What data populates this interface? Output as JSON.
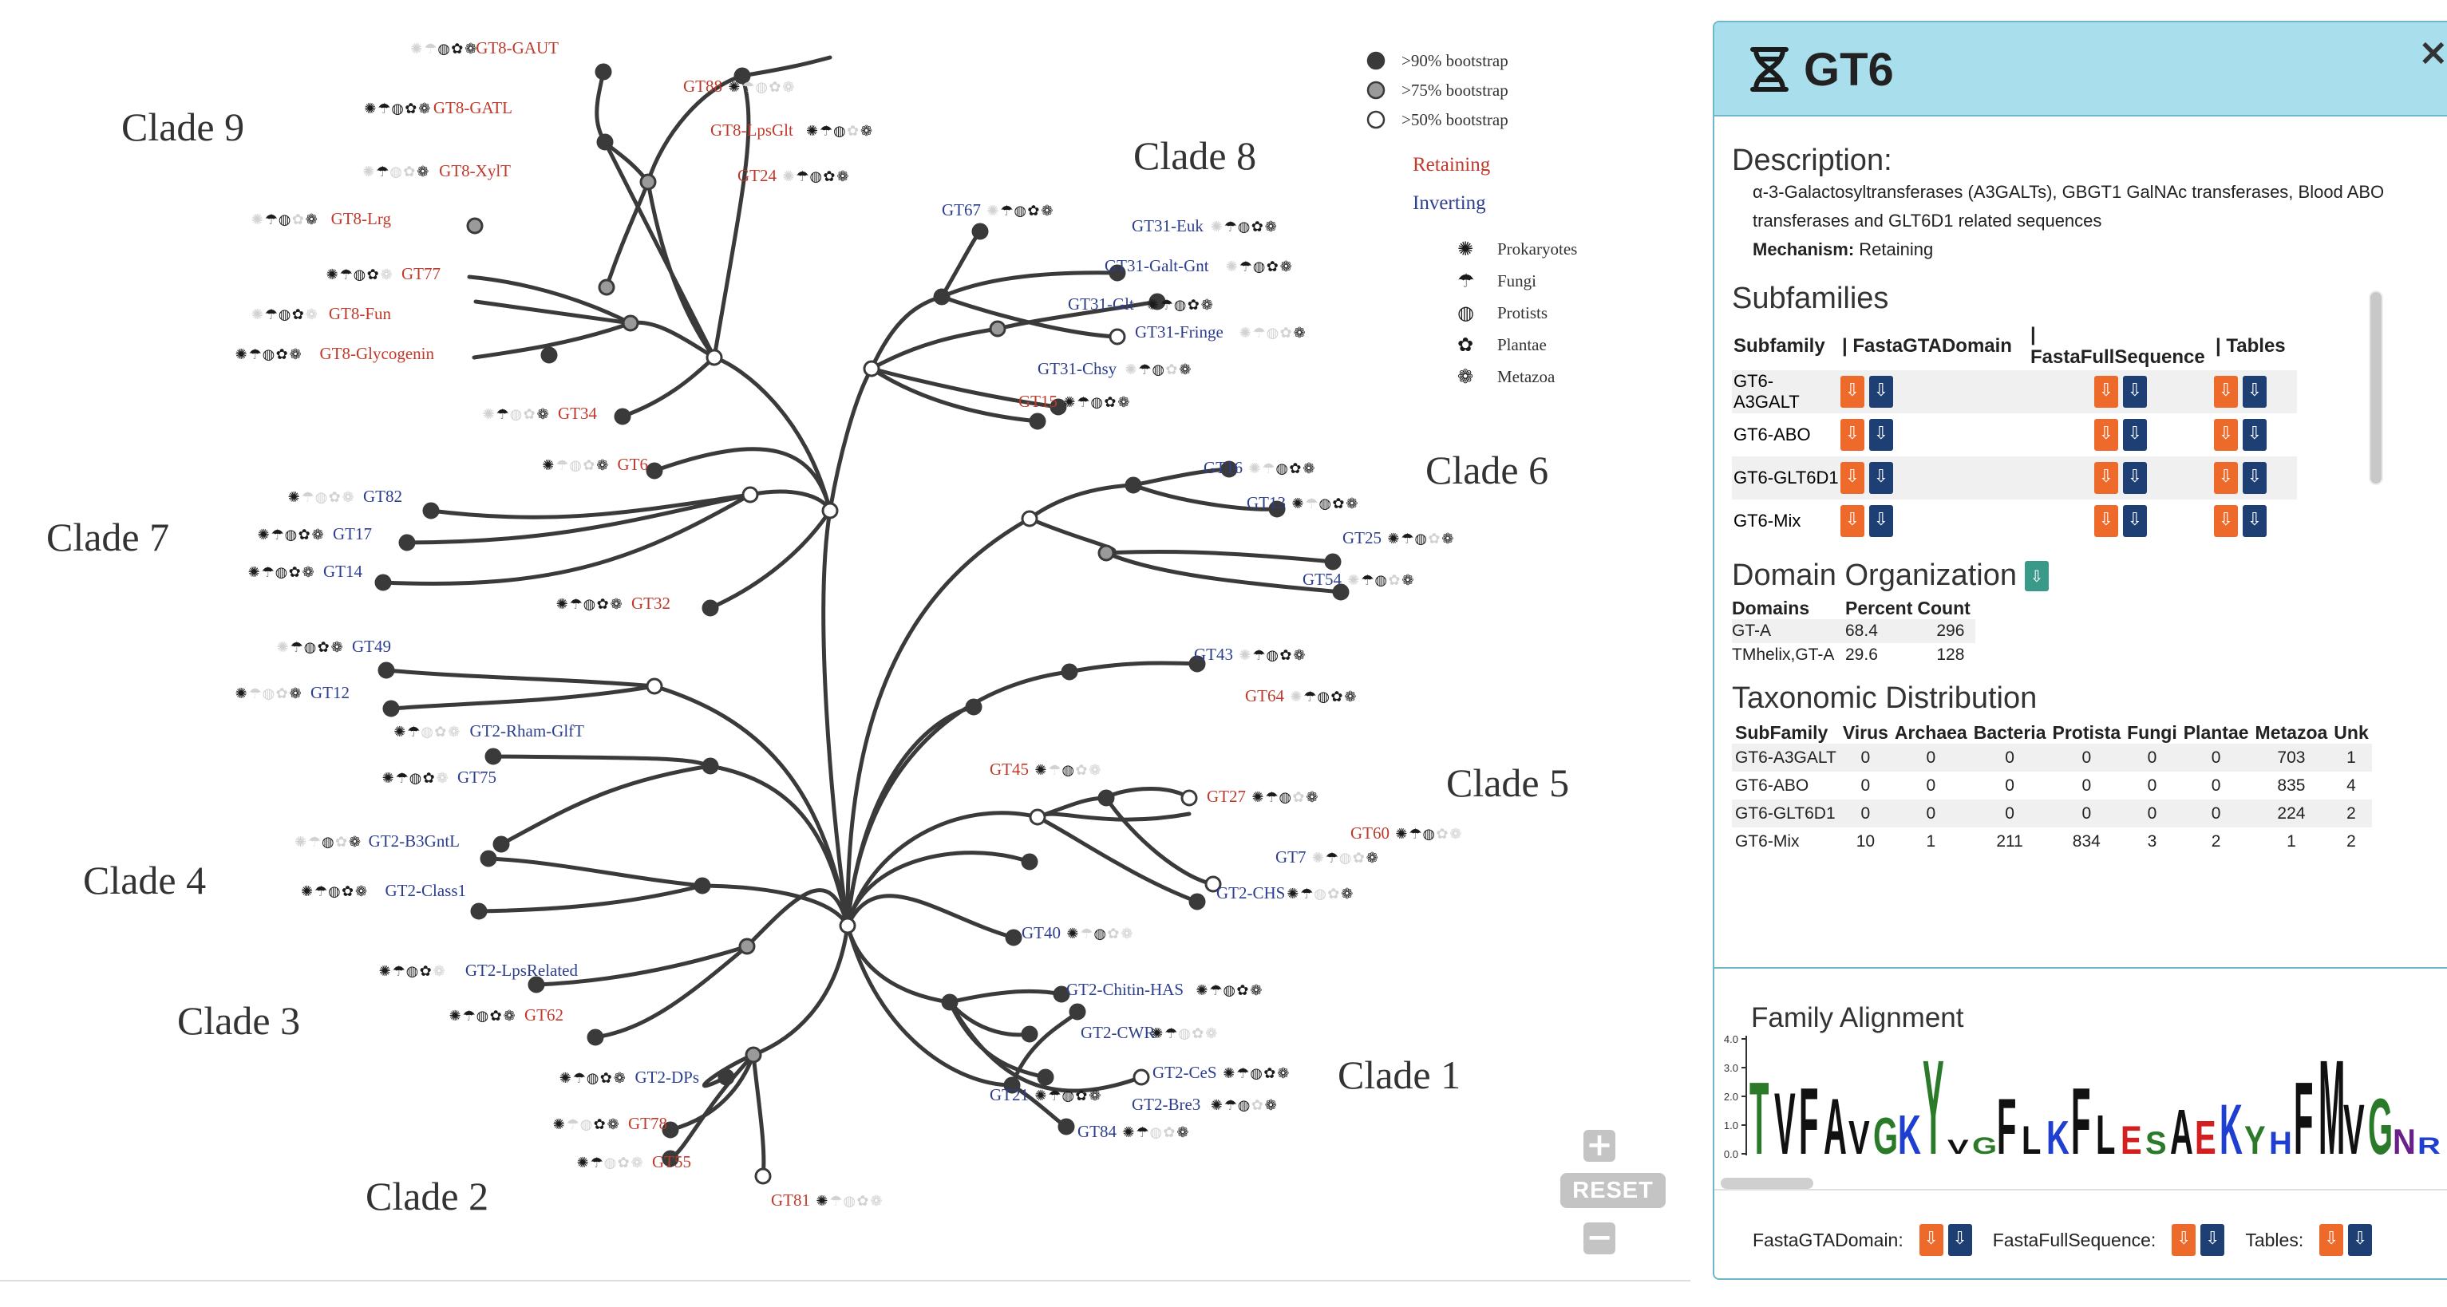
{
  "legend": {
    "bootstrap": [
      ">90% bootstrap",
      ">75% bootstrap",
      ">50% bootstrap"
    ],
    "mechanism": [
      {
        "label": "Retaining",
        "color": "#c0392b"
      },
      {
        "label": "Inverting",
        "color": "#2c3e8f"
      }
    ],
    "taxa": [
      "Prokaryotes",
      "Fungi",
      "Protists",
      "Plantae",
      "Metazoa"
    ]
  },
  "colors": {
    "retaining": "#c0392b",
    "inverting": "#2c3e8f",
    "branch": "#3a3a3a",
    "panel_header": "#a9dfec",
    "download_orange": "#ed6a2b",
    "download_blue": "#1d3f74"
  },
  "clades": [
    "Clade 9",
    "Clade 8",
    "Clade 7",
    "Clade 6",
    "Clade 5",
    "Clade 4",
    "Clade 3",
    "Clade 2",
    "Clade 1"
  ],
  "leaves": [
    {
      "label": "GT8-GAUT",
      "mech": "retaining",
      "taxa": [
        0,
        0,
        1,
        1,
        1
      ]
    },
    {
      "label": "GT88",
      "mech": "retaining",
      "taxa": [
        1,
        0,
        0,
        0,
        0
      ]
    },
    {
      "label": "GT8-GATL",
      "mech": "retaining",
      "taxa": [
        1,
        1,
        1,
        1,
        1
      ]
    },
    {
      "label": "GT8-LpsGlt",
      "mech": "retaining",
      "taxa": [
        1,
        1,
        1,
        0,
        1
      ]
    },
    {
      "label": "GT8-XylT",
      "mech": "retaining",
      "taxa": [
        0,
        1,
        0,
        0,
        1
      ]
    },
    {
      "label": "GT24",
      "mech": "retaining",
      "taxa": [
        0,
        1,
        1,
        1,
        1
      ]
    },
    {
      "label": "GT8-Lrg",
      "mech": "retaining",
      "taxa": [
        0,
        1,
        1,
        0,
        1
      ]
    },
    {
      "label": "GT77",
      "mech": "retaining",
      "taxa": [
        1,
        1,
        1,
        1,
        0
      ]
    },
    {
      "label": "GT8-Fun",
      "mech": "retaining",
      "taxa": [
        0,
        1,
        1,
        1,
        0
      ]
    },
    {
      "label": "GT8-Glycogenin",
      "mech": "retaining",
      "taxa": [
        1,
        1,
        1,
        1,
        1
      ]
    },
    {
      "label": "GT34",
      "mech": "retaining",
      "taxa": [
        0,
        1,
        0,
        0,
        1
      ]
    },
    {
      "label": "GT6",
      "mech": "retaining",
      "taxa": [
        1,
        0,
        0,
        0,
        1
      ]
    },
    {
      "label": "GT67",
      "mech": "inverting",
      "taxa": [
        0,
        1,
        1,
        1,
        1
      ]
    },
    {
      "label": "GT31-Euk",
      "mech": "inverting",
      "taxa": [
        0,
        1,
        1,
        1,
        1
      ]
    },
    {
      "label": "GT31-Galt-Gnt",
      "mech": "inverting",
      "taxa": [
        0,
        1,
        1,
        1,
        1
      ]
    },
    {
      "label": "GT31-Glt",
      "mech": "inverting",
      "taxa": [
        1,
        1,
        1,
        1,
        1
      ]
    },
    {
      "label": "GT31-Fringe",
      "mech": "inverting",
      "taxa": [
        0,
        0,
        0,
        0,
        1
      ]
    },
    {
      "label": "GT31-Chsy",
      "mech": "inverting",
      "taxa": [
        0,
        1,
        1,
        0,
        1
      ]
    },
    {
      "label": "GT15",
      "mech": "retaining",
      "taxa": [
        1,
        1,
        1,
        1,
        1
      ]
    },
    {
      "label": "GT82",
      "mech": "inverting",
      "taxa": [
        1,
        0,
        0,
        0,
        0
      ]
    },
    {
      "label": "GT17",
      "mech": "inverting",
      "taxa": [
        1,
        1,
        1,
        1,
        1
      ]
    },
    {
      "label": "GT14",
      "mech": "inverting",
      "taxa": [
        1,
        1,
        1,
        1,
        1
      ]
    },
    {
      "label": "GT32",
      "mech": "retaining",
      "taxa": [
        1,
        1,
        1,
        1,
        1
      ]
    },
    {
      "label": "GT16",
      "mech": "inverting",
      "taxa": [
        0,
        0,
        1,
        1,
        1
      ]
    },
    {
      "label": "GT13",
      "mech": "inverting",
      "taxa": [
        1,
        0,
        1,
        1,
        1
      ]
    },
    {
      "label": "GT25",
      "mech": "inverting",
      "taxa": [
        1,
        1,
        1,
        0,
        1
      ]
    },
    {
      "label": "GT54",
      "mech": "inverting",
      "taxa": [
        0,
        1,
        1,
        0,
        1
      ]
    },
    {
      "label": "GT49",
      "mech": "inverting",
      "taxa": [
        0,
        1,
        1,
        1,
        1
      ]
    },
    {
      "label": "GT12",
      "mech": "inverting",
      "taxa": [
        1,
        0,
        0,
        0,
        1
      ]
    },
    {
      "label": "GT43",
      "mech": "inverting",
      "taxa": [
        0,
        1,
        1,
        1,
        1
      ]
    },
    {
      "label": "GT64",
      "mech": "retaining",
      "taxa": [
        0,
        1,
        1,
        1,
        1
      ]
    },
    {
      "label": "GT2-Rham-GlfT",
      "mech": "inverting",
      "taxa": [
        1,
        1,
        0,
        0,
        0
      ]
    },
    {
      "label": "GT75",
      "mech": "inverting",
      "taxa": [
        1,
        1,
        1,
        1,
        0
      ]
    },
    {
      "label": "GT45",
      "mech": "retaining",
      "taxa": [
        1,
        0,
        1,
        0,
        0
      ]
    },
    {
      "label": "GT27",
      "mech": "retaining",
      "taxa": [
        1,
        1,
        1,
        0,
        1
      ]
    },
    {
      "label": "GT60",
      "mech": "retaining",
      "taxa": [
        1,
        1,
        1,
        0,
        0
      ]
    },
    {
      "label": "GT2-B3GntL",
      "mech": "inverting",
      "taxa": [
        0,
        0,
        1,
        0,
        1
      ]
    },
    {
      "label": "GT7",
      "mech": "inverting",
      "taxa": [
        0,
        1,
        0,
        0,
        1
      ]
    },
    {
      "label": "GT2-Class1",
      "mech": "inverting",
      "taxa": [
        1,
        1,
        1,
        1,
        1
      ]
    },
    {
      "label": "GT2-CHS",
      "mech": "inverting",
      "taxa": [
        1,
        1,
        0,
        0,
        1
      ]
    },
    {
      "label": "GT40",
      "mech": "inverting",
      "taxa": [
        1,
        0,
        1,
        0,
        0
      ]
    },
    {
      "label": "GT2-LpsRelated",
      "mech": "inverting",
      "taxa": [
        1,
        1,
        1,
        1,
        0
      ]
    },
    {
      "label": "GT62",
      "mech": "retaining",
      "taxa": [
        1,
        1,
        1,
        1,
        1
      ]
    },
    {
      "label": "GT2-Chitin-HAS",
      "mech": "inverting",
      "taxa": [
        1,
        1,
        1,
        1,
        1
      ]
    },
    {
      "label": "GT2-CWR",
      "mech": "inverting",
      "taxa": [
        1,
        1,
        0,
        0,
        0
      ]
    },
    {
      "label": "GT2-DPs",
      "mech": "inverting",
      "taxa": [
        1,
        1,
        1,
        1,
        1
      ]
    },
    {
      "label": "GT2-CeS",
      "mech": "inverting",
      "taxa": [
        1,
        1,
        1,
        1,
        1
      ]
    },
    {
      "label": "GT21",
      "mech": "inverting",
      "taxa": [
        1,
        1,
        1,
        1,
        1
      ]
    },
    {
      "label": "GT2-Bre3",
      "mech": "inverting",
      "taxa": [
        1,
        1,
        1,
        0,
        1
      ]
    },
    {
      "label": "GT78",
      "mech": "retaining",
      "taxa": [
        1,
        0,
        0,
        1,
        1
      ]
    },
    {
      "label": "GT84",
      "mech": "inverting",
      "taxa": [
        1,
        1,
        0,
        0,
        1
      ]
    },
    {
      "label": "GT55",
      "mech": "retaining",
      "taxa": [
        1,
        1,
        0,
        0,
        0
      ]
    },
    {
      "label": "GT81",
      "mech": "retaining",
      "taxa": [
        1,
        0,
        0,
        0,
        0
      ]
    }
  ],
  "controls": {
    "zoom_in": "+",
    "reset": "RESET",
    "zoom_out": "−"
  },
  "panel": {
    "title": "GT6",
    "close": "×",
    "description_heading": "Description:",
    "description": "α-3-Galactosyltransferases (A3GALTs), GBGT1 GalNAc transferases, Blood ABO transferases and GLT6D1 related sequences",
    "mechanism_label": "Mechanism:",
    "mechanism_value": "Retaining",
    "subfamilies_heading": "Subfamilies",
    "subfamily_columns": [
      "Subfamily",
      "| FastaGTADomain",
      "| FastaFullSequence",
      "| Tables"
    ],
    "subfamilies": [
      "GT6-A3GALT",
      "GT6-ABO",
      "GT6-GLT6D1",
      "GT6-Mix"
    ],
    "domain_heading": "Domain Organization",
    "domain_columns": [
      "Domains",
      "Percent",
      "Count"
    ],
    "domains": [
      {
        "name": "GT-A",
        "percent": "68.4",
        "count": "296"
      },
      {
        "name": "TMhelix,GT-A",
        "percent": "29.6",
        "count": "128"
      }
    ],
    "taxonomy_heading": "Taxonomic Distribution",
    "taxonomy_columns": [
      "SubFamily",
      "Virus",
      "Archaea",
      "Bacteria",
      "Protista",
      "Fungi",
      "Plantae",
      "Metazoa",
      "Unk"
    ],
    "taxonomy": [
      [
        "GT6-A3GALT",
        "0",
        "0",
        "0",
        "0",
        "0",
        "0",
        "703",
        "1"
      ],
      [
        "GT6-ABO",
        "0",
        "0",
        "0",
        "0",
        "0",
        "0",
        "835",
        "4"
      ],
      [
        "GT6-GLT6D1",
        "0",
        "0",
        "0",
        "0",
        "0",
        "0",
        "224",
        "2"
      ],
      [
        "GT6-Mix",
        "10",
        "1",
        "211",
        "834",
        "3",
        "2",
        "1",
        "2"
      ]
    ],
    "alignment_heading": "Family Alignment",
    "logo_axis": [
      "4.0",
      "3.0",
      "2.0",
      "1.0",
      "0.0"
    ],
    "logo_letters": "TVFAVGKYVGFLKFLESAEKYHFMVGNR",
    "footer": [
      "FastaGTADomain:",
      "FastaFullSequence:",
      "Tables:"
    ]
  }
}
